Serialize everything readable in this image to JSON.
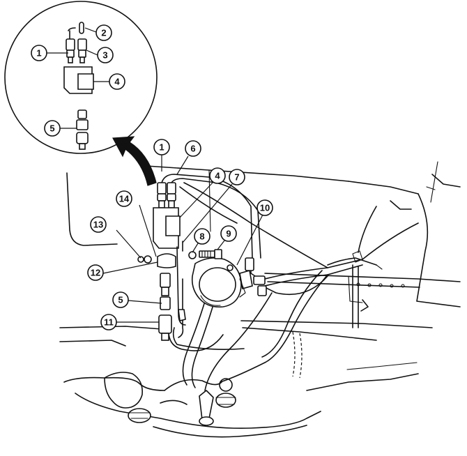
{
  "callouts": [
    {
      "id": "c1-detail",
      "label": "1"
    },
    {
      "id": "c2-detail",
      "label": "2"
    },
    {
      "id": "c3-detail",
      "label": "3"
    },
    {
      "id": "c4-detail",
      "label": "4"
    },
    {
      "id": "c5-detail",
      "label": "5"
    },
    {
      "id": "c1-main",
      "label": "1"
    },
    {
      "id": "c6-main",
      "label": "6"
    },
    {
      "id": "c4-main",
      "label": "4"
    },
    {
      "id": "c7-main",
      "label": "7"
    },
    {
      "id": "c8-main",
      "label": "8"
    },
    {
      "id": "c9-main",
      "label": "9"
    },
    {
      "id": "c10-main",
      "label": "10"
    },
    {
      "id": "c14-main",
      "label": "14"
    },
    {
      "id": "c13-main",
      "label": "13"
    },
    {
      "id": "c12-main",
      "label": "12"
    },
    {
      "id": "c5-main",
      "label": "5"
    },
    {
      "id": "c11-main",
      "label": "11"
    }
  ]
}
